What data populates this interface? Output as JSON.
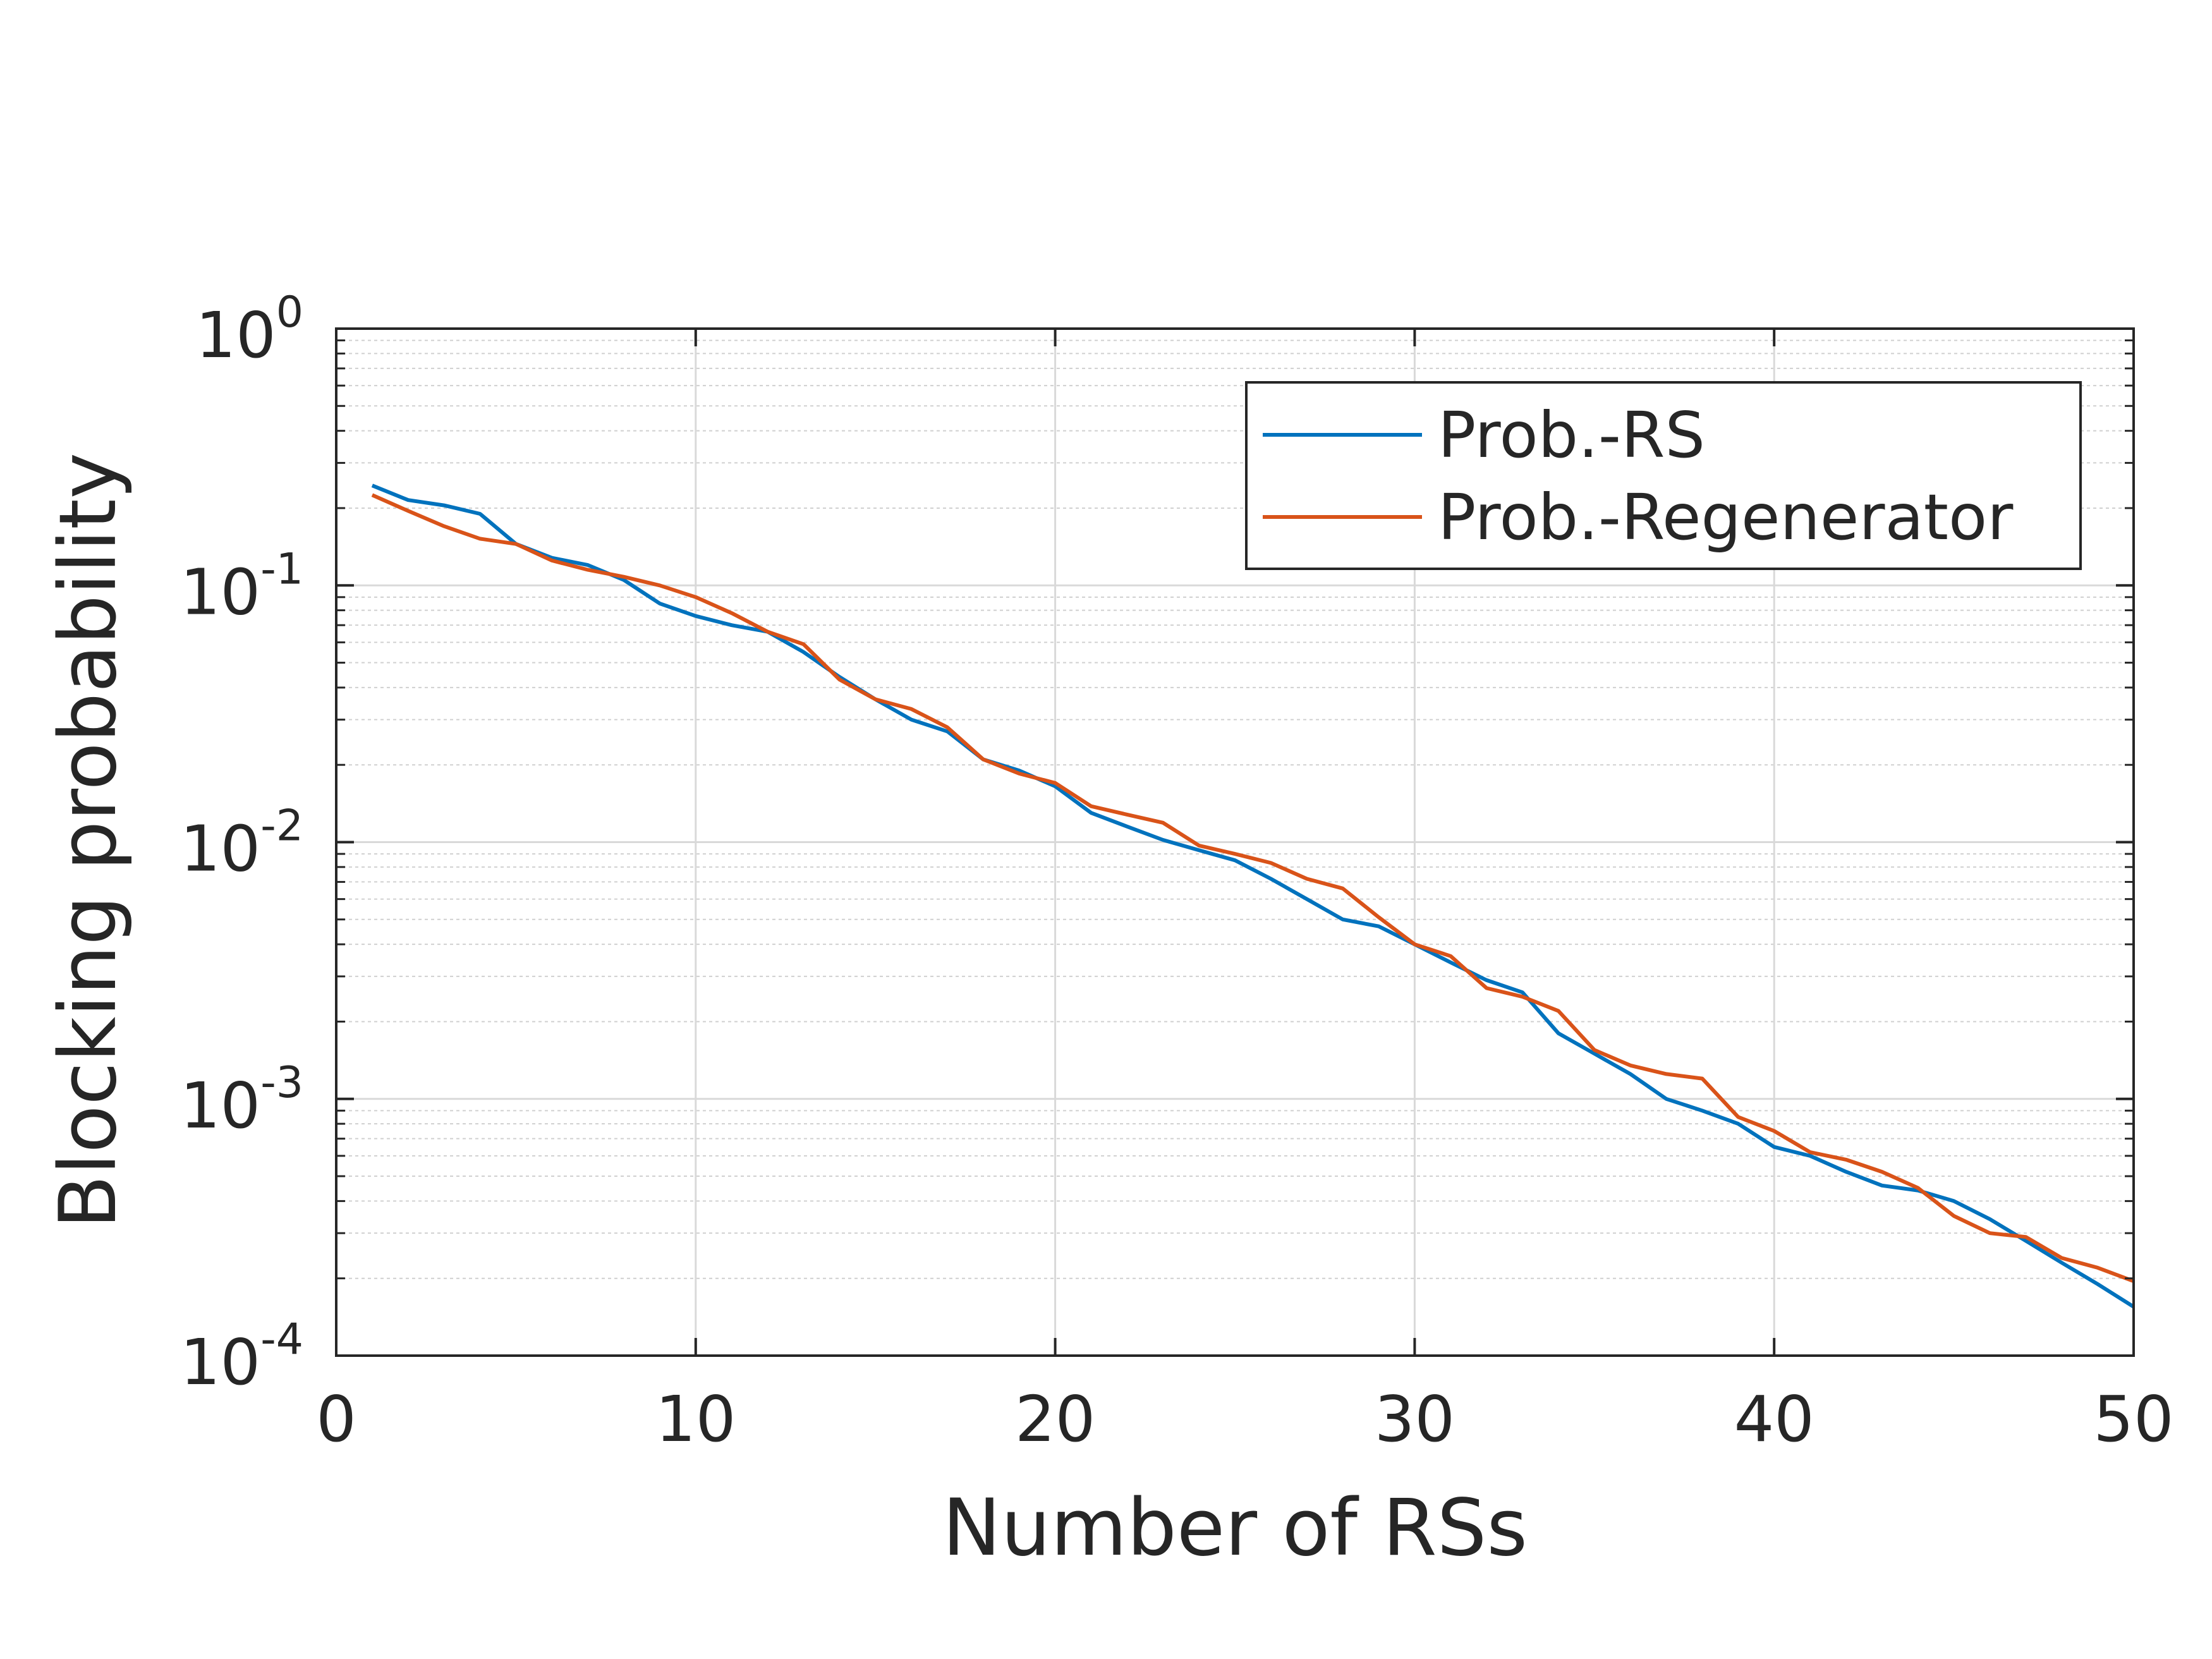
{
  "chart_data": {
    "type": "line",
    "xlabel": "Number of RSs",
    "ylabel": "Blocking probability",
    "xlim": [
      0,
      50
    ],
    "ylim": [
      0.0001,
      1
    ],
    "yscale": "log",
    "grid": true,
    "minor_grid": true,
    "legend_position": "top-right",
    "xticks": [
      {
        "value": 0,
        "label": "0"
      },
      {
        "value": 10,
        "label": "10"
      },
      {
        "value": 20,
        "label": "20"
      },
      {
        "value": 30,
        "label": "30"
      },
      {
        "value": 40,
        "label": "40"
      },
      {
        "value": 50,
        "label": "50"
      }
    ],
    "yticks": [
      {
        "value": 1,
        "base": "10",
        "exp": "0"
      },
      {
        "value": 0.1,
        "base": "10",
        "exp": "-1"
      },
      {
        "value": 0.01,
        "base": "10",
        "exp": "-2"
      },
      {
        "value": 0.001,
        "base": "10",
        "exp": "-3"
      },
      {
        "value": 0.0001,
        "base": "10",
        "exp": "-4"
      }
    ],
    "series": [
      {
        "name": "Prob.-RS",
        "color": "#0072BD",
        "x": [
          1,
          2,
          3,
          4,
          5,
          6,
          7,
          8,
          9,
          10,
          11,
          12,
          13,
          14,
          15,
          16,
          17,
          18,
          19,
          20,
          21,
          22,
          23,
          24,
          25,
          26,
          27,
          28,
          29,
          30,
          31,
          32,
          33,
          34,
          35,
          36,
          37,
          38,
          39,
          40,
          41,
          42,
          43,
          44,
          45,
          46,
          47,
          48,
          49,
          50
        ],
        "y": [
          0.245,
          0.215,
          0.205,
          0.19,
          0.145,
          0.128,
          0.12,
          0.105,
          0.085,
          0.076,
          0.07,
          0.066,
          0.055,
          0.044,
          0.036,
          0.03,
          0.027,
          0.021,
          0.019,
          0.0165,
          0.013,
          0.0115,
          0.0102,
          0.0093,
          0.0085,
          0.0072,
          0.006,
          0.005,
          0.0047,
          0.004,
          0.0034,
          0.0029,
          0.0026,
          0.0018,
          0.0015,
          0.00125,
          0.001,
          0.0009,
          0.0008,
          0.00065,
          0.0006,
          0.00052,
          0.00046,
          0.00044,
          0.0004,
          0.00034,
          0.00028,
          0.00023,
          0.00019,
          0.000155
        ]
      },
      {
        "name": "Prob.-Regenerator",
        "color": "#D95319",
        "x": [
          1,
          2,
          3,
          4,
          5,
          6,
          7,
          8,
          9,
          10,
          11,
          12,
          13,
          14,
          15,
          16,
          17,
          18,
          19,
          20,
          21,
          22,
          23,
          24,
          25,
          26,
          27,
          28,
          29,
          30,
          31,
          32,
          33,
          34,
          35,
          36,
          37,
          38,
          39,
          40,
          41,
          42,
          43,
          44,
          45,
          46,
          47,
          48,
          49,
          50
        ],
        "y": [
          0.225,
          0.195,
          0.17,
          0.152,
          0.145,
          0.125,
          0.115,
          0.108,
          0.1,
          0.09,
          0.078,
          0.066,
          0.059,
          0.043,
          0.036,
          0.033,
          0.028,
          0.021,
          0.0185,
          0.017,
          0.0138,
          0.0128,
          0.0119,
          0.0097,
          0.009,
          0.0083,
          0.0072,
          0.0066,
          0.0051,
          0.004,
          0.0036,
          0.0027,
          0.0025,
          0.0022,
          0.00155,
          0.00135,
          0.00125,
          0.0012,
          0.00085,
          0.00075,
          0.00062,
          0.00058,
          0.00052,
          0.00045,
          0.00035,
          0.0003,
          0.00029,
          0.00024,
          0.00022,
          0.000195
        ]
      }
    ]
  }
}
